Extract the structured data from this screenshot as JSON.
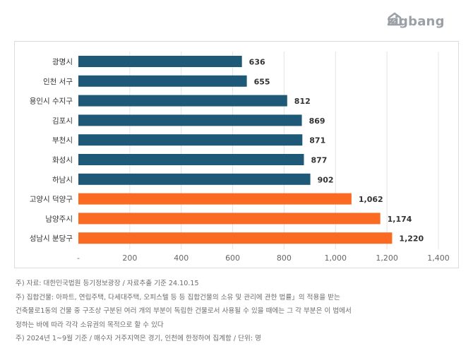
{
  "brand": {
    "name": "zigbang",
    "color": "#9aa0a6"
  },
  "chart_data": {
    "type": "bar",
    "orientation": "horizontal",
    "categories": [
      "광명시",
      "인천 서구",
      "용인시 수지구",
      "김포시",
      "부천시",
      "화성시",
      "하남시",
      "고양시 덕양구",
      "남양주시",
      "성남시 분당구"
    ],
    "values": [
      636,
      655,
      812,
      869,
      871,
      877,
      902,
      1062,
      1174,
      1220
    ],
    "value_labels": [
      "636",
      "655",
      "812",
      "869",
      "871",
      "877",
      "902",
      "1,062",
      "1,174",
      "1,220"
    ],
    "highlight": [
      false,
      false,
      false,
      false,
      false,
      false,
      false,
      true,
      true,
      true
    ],
    "colors": {
      "default": "#1e5a78",
      "highlight": "#fb6a22"
    },
    "xlim": [
      0,
      1400
    ],
    "xticks": [
      0,
      200,
      400,
      600,
      800,
      1000,
      1200,
      1400
    ],
    "xtick_labels": [
      "-",
      "200",
      "400",
      "600",
      "800",
      "1,000",
      "1,200",
      "1,400"
    ],
    "grid": true,
    "title": "",
    "xlabel": "",
    "ylabel": ""
  },
  "notes": [
    "주) 자료: 대한민국법원 등기정보광장 / 자료추출 기준 24.10.15",
    "주) 집합건물: 아파트, 연립주택, 다세대주택, 오피스텔 등 등  집합건물의 소유 및 관리에 관한 법률」의 적용을 받는",
    "건축물로1동의 건물 중 구조상 구분된 여러 개의 부분이 독립한 건물로서 사용될 수 있을 때에는 그 각 부분은 이 법에서",
    "정하는 바에 따라 각각 소유권의 목적으로 할 수 있다",
    "주) 2024년 1~9월 기준 / 매수자 거주지역은 경기, 인천에 한정하여 집계함 / 단위: 명"
  ]
}
